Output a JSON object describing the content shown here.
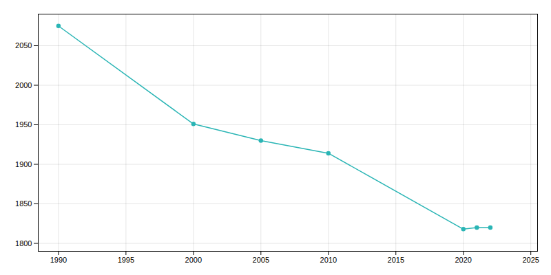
{
  "chart_data": {
    "type": "line",
    "x": [
      1990,
      2000,
      2005,
      2010,
      2020,
      2021,
      2022
    ],
    "values": [
      2075,
      1951,
      1930,
      1914,
      1818,
      1820,
      1820
    ],
    "color": "#2ab5b5",
    "marker": "circle",
    "xlim": [
      1988.5,
      2025.5
    ],
    "ylim": [
      1790,
      2090
    ],
    "xticks": [
      1990,
      1995,
      2000,
      2005,
      2010,
      2015,
      2020,
      2025
    ],
    "yticks": [
      1800,
      1850,
      1900,
      1950,
      2000,
      2050
    ],
    "grid": true
  }
}
